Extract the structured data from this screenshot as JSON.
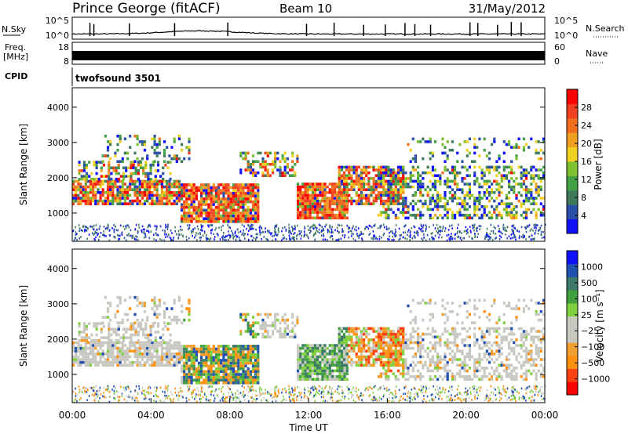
{
  "header": {
    "site": "Prince George (fitACF)",
    "beam": "Beam 10",
    "date": "31/May/2012"
  },
  "labels": {
    "nsky": "N.Sky",
    "nsearch": "N.Search",
    "freq_line1": "Freq.",
    "freq_line2": "[MHz]",
    "nave": "Nave",
    "cpid": "CPID",
    "cpid_value": "twofsound 3501"
  },
  "colors": {
    "power_scale": [
      "#1010ff",
      "#2a50a8",
      "#3e7a5a",
      "#44a044",
      "#80c030",
      "#f0d020",
      "#f0a020",
      "#f07020",
      "#f04020",
      "#ff0000"
    ],
    "velocity_scale": [
      "#ff0000",
      "#ff4010",
      "#ff9010",
      "#f0a030",
      "#c8c8c0",
      "#c8c8c0",
      "#80d040",
      "#40a040",
      "#3e7a6a",
      "#2050b0",
      "#1010ff"
    ]
  },
  "chart_data": [
    {
      "id": "nsky-panel",
      "type": "line",
      "left_axis": {
        "ticks": [
          "10^5",
          "10^0"
        ]
      },
      "right_axis": {
        "ticks": [
          "10^5",
          "10^0"
        ]
      },
      "x": [
        "00:00",
        "04:00",
        "08:00",
        "12:00",
        "16:00",
        "20:00",
        "00:00"
      ]
    },
    {
      "id": "freq-panel",
      "type": "line",
      "left_axis": {
        "ticks": [
          "18",
          "8"
        ]
      },
      "right_axis": {
        "ticks": [
          "60",
          "0"
        ]
      },
      "freq_mhz": 10,
      "nave": 42
    },
    {
      "id": "power-panel",
      "type": "heatmap",
      "ylabel": "Slant Range [km]",
      "yticks": [
        "4000",
        "3000",
        "2000",
        "1000"
      ],
      "ylim": [
        200,
        4550
      ],
      "xlim": [
        0,
        24
      ],
      "colorbar": {
        "label": "Power [dB]",
        "ticks": [
          "28",
          "24",
          "20",
          "16",
          "12",
          "8",
          "4"
        ],
        "range": [
          0,
          32
        ]
      }
    },
    {
      "id": "velocity-panel",
      "type": "heatmap",
      "ylabel": "Slant Range [km]",
      "yticks": [
        "4000",
        "3000",
        "2000",
        "1000"
      ],
      "ylim": [
        200,
        4550
      ],
      "xlim": [
        0,
        24
      ],
      "xlabel": "Time UT",
      "xticks": [
        "00:00",
        "04:00",
        "08:00",
        "12:00",
        "16:00",
        "20:00",
        "00:00"
      ],
      "colorbar": {
        "label": "Velocity [m s⁻¹]",
        "ticks": [
          "1000",
          "500",
          "100",
          "25",
          "−25",
          "−100",
          "−500",
          "−1000"
        ],
        "range": [
          -1200,
          1200
        ]
      }
    }
  ]
}
